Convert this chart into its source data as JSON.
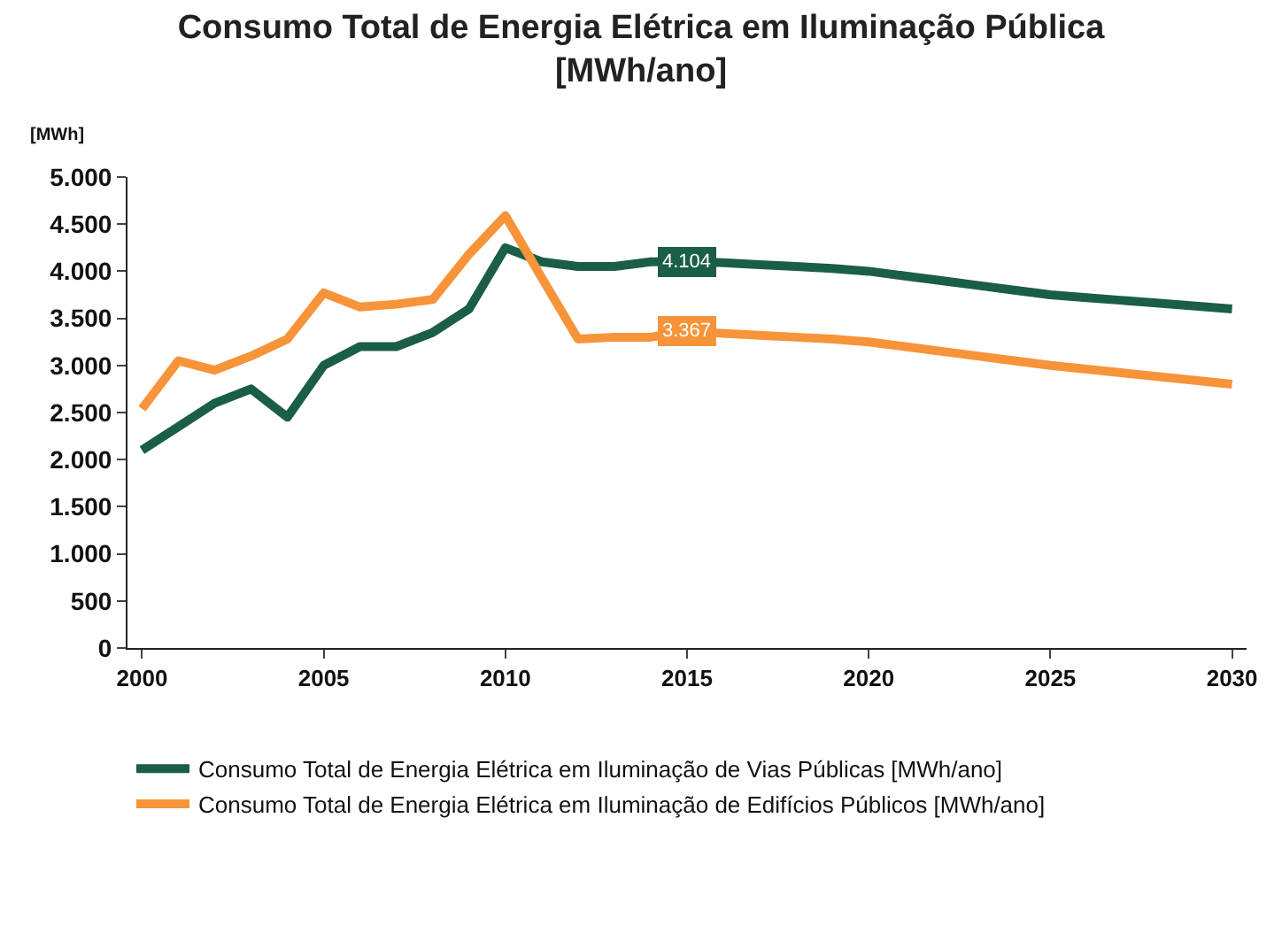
{
  "chart_data": {
    "type": "line",
    "title": "Consumo Total de Energia Elétrica em Iluminação Pública\n[MWh/ano]",
    "ylabel": "[MWh]",
    "x": [
      2000,
      2001,
      2002,
      2003,
      2004,
      2005,
      2006,
      2007,
      2008,
      2009,
      2010,
      2011,
      2012,
      2013,
      2014,
      2015,
      2016,
      2017,
      2018,
      2019,
      2020,
      2021,
      2022,
      2023,
      2024,
      2025,
      2026,
      2027,
      2028,
      2029,
      2030
    ],
    "series": [
      {
        "name": "Consumo Total de Energia Elétrica em Iluminação de Vias Públicas [MWh/ano]",
        "color": "#1a5e45",
        "values": [
          2100,
          2350,
          2600,
          2750,
          2450,
          3000,
          3200,
          3200,
          3350,
          3600,
          4250,
          4100,
          4050,
          4050,
          4100,
          4104,
          4090,
          4070,
          4050,
          4030,
          4000,
          3950,
          3900,
          3850,
          3800,
          3750,
          3720,
          3690,
          3660,
          3630,
          3600
        ],
        "value_labels": [
          null,
          null,
          null,
          null,
          null,
          null,
          null,
          null,
          null,
          null,
          null,
          null,
          null,
          null,
          null,
          "4.104",
          null,
          null,
          null,
          null,
          null,
          null,
          null,
          null,
          null,
          null,
          null,
          null,
          null,
          null,
          null
        ]
      },
      {
        "name": "Consumo Total de Energia Elétrica em Iluminação de Edifícios Públicos [MWh/ano]",
        "color": "#f7943a",
        "values": [
          2540,
          3050,
          2950,
          3100,
          3280,
          3770,
          3620,
          3650,
          3700,
          4180,
          4590,
          3930,
          3280,
          3300,
          3300,
          3367,
          3340,
          3320,
          3300,
          3280,
          3250,
          3200,
          3150,
          3100,
          3050,
          3000,
          2960,
          2920,
          2880,
          2840,
          2800
        ],
        "value_labels": [
          null,
          null,
          null,
          null,
          null,
          null,
          null,
          null,
          null,
          null,
          null,
          null,
          null,
          null,
          null,
          "3.367",
          null,
          null,
          null,
          null,
          null,
          null,
          null,
          null,
          null,
          null,
          null,
          null,
          null,
          null,
          null
        ]
      }
    ],
    "xlim": [
      1999.6,
      2030.4
    ],
    "xticks": [
      2000,
      2005,
      2010,
      2015,
      2020,
      2025,
      2030
    ],
    "ylim": [
      0,
      5000
    ],
    "yticks": [
      {
        "value": 0,
        "label": "0"
      },
      {
        "value": 500,
        "label": "500"
      },
      {
        "value": 1000,
        "label": "1.000"
      },
      {
        "value": 1500,
        "label": "1.500"
      },
      {
        "value": 2000,
        "label": "2.000"
      },
      {
        "value": 2500,
        "label": "2.500"
      },
      {
        "value": 3000,
        "label": "3.000"
      },
      {
        "value": 3500,
        "label": "3.500"
      },
      {
        "value": 4000,
        "label": "4.000"
      },
      {
        "value": 4500,
        "label": "4.500"
      },
      {
        "value": 5000,
        "label": "5.000"
      }
    ],
    "grid": false,
    "legend": "bottom",
    "marker": "none",
    "line_style": "solid"
  }
}
